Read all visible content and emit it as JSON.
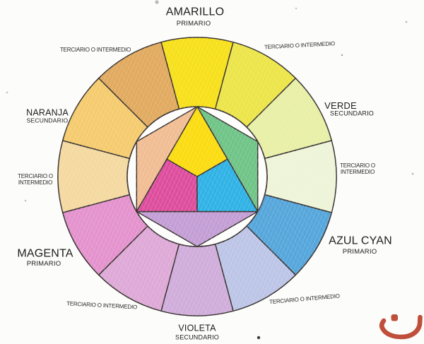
{
  "page": {
    "background": "#FCFCFA",
    "ink": "#1D1D1B",
    "outline": "#3A3432"
  },
  "labels": {
    "amarillo": {
      "title": "AMARILLO",
      "subtitle": "PRIMARIO"
    },
    "verde": {
      "title": "VERDE",
      "subtitle": "SECUNDARIO"
    },
    "azul_cyan": {
      "title": "AZUL CYAN",
      "subtitle": "PRIMARIO"
    },
    "violeta": {
      "title": "VIOLETA",
      "subtitle": "SECUNDARIO"
    },
    "magenta": {
      "title": "MAGENTA",
      "subtitle": "PRIMARIO"
    },
    "naranja": {
      "title": "NARANJA",
      "subtitle": "SECUNDARIO"
    },
    "terciario_top_left": "TERCIARIO O INTERMEDIO",
    "terciario_top_right": "TERCIARIO O INTERMEDIO",
    "terciario_right_line1": "TERCIARIO O",
    "terciario_right_line2": "INTERMEDIO",
    "terciario_bottom_right": "TERCIARIO O INTERMEDIO",
    "terciario_bottom_left": "TERCIARIO O INTERMEDIO",
    "terciario_left_line1": "TERCIARIO O",
    "terciario_left_line2": "INTERMEDIO"
  },
  "wheel": {
    "ring_segments": [
      {
        "name": "amarillo",
        "angle": 90,
        "color": "#F7E01A"
      },
      {
        "name": "terciario-amarillo-verde",
        "angle": 60,
        "color": "#ECE549"
      },
      {
        "name": "verde",
        "angle": 30,
        "color": "#E8EFA6"
      },
      {
        "name": "terciario-verde-azul",
        "angle": 0,
        "color": "#EEF4D8"
      },
      {
        "name": "azul-cyan",
        "angle": -30,
        "color": "#55A6DB"
      },
      {
        "name": "terciario-azul-violeta",
        "angle": -60,
        "color": "#BDC5E7"
      },
      {
        "name": "violeta",
        "angle": -90,
        "color": "#D0ADDB"
      },
      {
        "name": "terciario-violeta-magenta",
        "angle": -120,
        "color": "#DEA9D7"
      },
      {
        "name": "magenta",
        "angle": -150,
        "color": "#E492CD"
      },
      {
        "name": "terciario-magenta-naranja",
        "angle": 180,
        "color": "#F4D9A0"
      },
      {
        "name": "naranja",
        "angle": 150,
        "color": "#F5CB6E"
      },
      {
        "name": "terciario-naranja-amarillo",
        "angle": 120,
        "color": "#E1AA5F"
      }
    ],
    "inner_shapes": {
      "yellow": "#FBDC10",
      "magenta": "#DE4D9D",
      "cyan": "#2FB2E5",
      "green": "#6FC487",
      "orange": "#F1BD93",
      "violet": "#C39ED5"
    }
  },
  "logo": {
    "color": "#BF4F3A"
  }
}
